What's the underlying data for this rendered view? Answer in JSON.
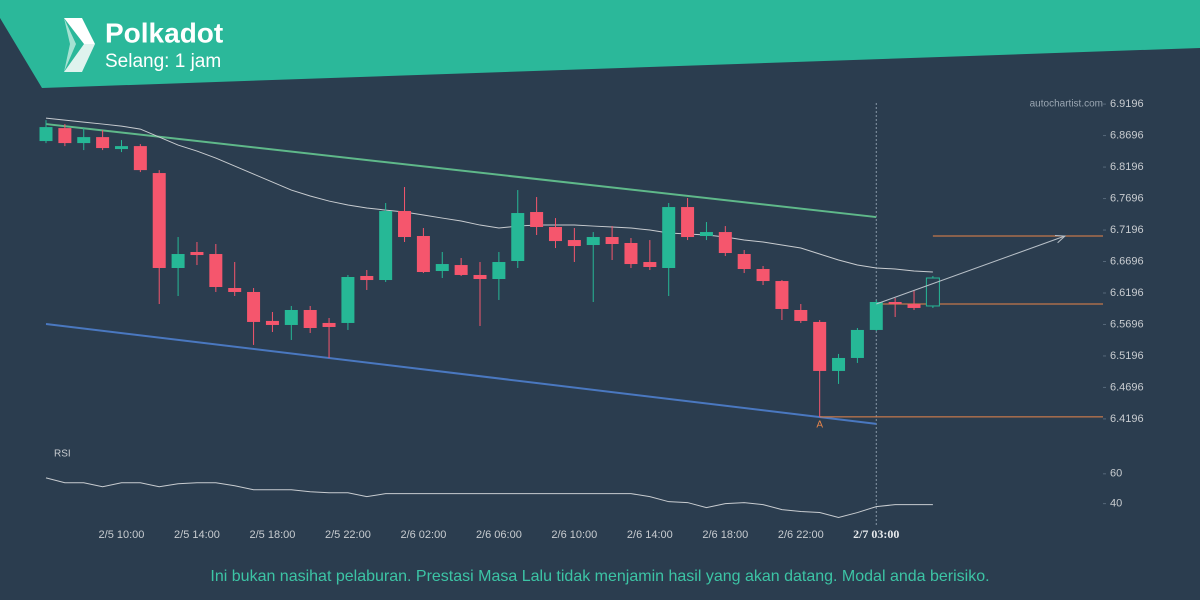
{
  "header": {
    "title": "Polkadot",
    "subtitle": "Selang: 1 jam",
    "watermark": "autochartist.com"
  },
  "chart_data": {
    "type": "candlestick",
    "categories": [
      null,
      null,
      null,
      null,
      "2/5 10:00",
      null,
      null,
      null,
      "2/5 14:00",
      null,
      null,
      null,
      "2/5 18:00",
      null,
      null,
      null,
      "2/5 22:00",
      null,
      null,
      null,
      "2/6 02:00",
      null,
      null,
      null,
      "2/6 06:00",
      null,
      null,
      null,
      "2/6 10:00",
      null,
      null,
      null,
      "2/6 14:00",
      null,
      null,
      null,
      "2/6 18:00",
      null,
      null,
      null,
      "2/6 22:00",
      null,
      null,
      null,
      "2/7 03:00",
      null,
      null,
      null
    ],
    "open": [
      6.8609,
      6.8815,
      6.8577,
      6.8672,
      6.8482,
      6.8529,
      6.8101,
      6.6593,
      6.6847,
      6.6815,
      6.6275,
      6.6212,
      6.5752,
      6.5688,
      6.5926,
      6.572,
      6.572,
      6.6466,
      6.6402,
      6.7498,
      6.7101,
      6.6545,
      6.664,
      6.6482,
      6.6418,
      6.6704,
      6.7482,
      6.7244,
      6.7037,
      6.6958,
      6.7085,
      6.699,
      6.6688,
      6.6593,
      6.7561,
      6.7101,
      6.7164,
      6.6815,
      6.6577,
      6.6386,
      6.5926,
      6.5736,
      6.4958,
      6.5164,
      6.5609,
      6.6053,
      6.6021,
      6.599
    ],
    "high": [
      6.8942,
      6.8879,
      6.8815,
      6.8783,
      6.8625,
      6.8561,
      6.8148,
      6.7085,
      6.7006,
      6.6974,
      6.6688,
      6.6275,
      6.5894,
      6.599,
      6.599,
      6.5799,
      6.6482,
      6.6561,
      6.7625,
      6.7879,
      6.7228,
      6.6847,
      6.6752,
      6.6688,
      6.6847,
      6.7831,
      6.772,
      6.7386,
      6.7228,
      6.7164,
      6.7259,
      6.7069,
      6.7037,
      6.7625,
      6.7704,
      6.7323,
      6.7259,
      6.6879,
      6.6625,
      6.6402,
      6.6021,
      6.5767,
      6.5228,
      6.564,
      6.6085,
      6.6117,
      6.6244,
      6.6466
    ],
    "low": [
      6.8577,
      6.8529,
      6.8466,
      6.8466,
      6.8434,
      6.8117,
      6.6021,
      6.6148,
      6.664,
      6.6212,
      6.6148,
      6.5371,
      6.5577,
      6.545,
      6.5561,
      6.5164,
      6.5609,
      6.6244,
      6.6371,
      6.7006,
      6.6513,
      6.6434,
      6.6466,
      6.5672,
      6.6085,
      6.6593,
      6.7117,
      6.691,
      6.6688,
      6.6053,
      6.672,
      6.6593,
      6.6561,
      6.6148,
      6.7037,
      6.7037,
      6.6783,
      6.6513,
      6.6323,
      6.5767,
      6.572,
      6.4228,
      6.4752,
      6.5085,
      6.5593,
      6.5815,
      6.5926,
      6.5958
    ],
    "close": [
      6.8831,
      6.8577,
      6.8672,
      6.8498,
      6.8529,
      6.8148,
      6.6593,
      6.6815,
      6.6799,
      6.6291,
      6.6212,
      6.5736,
      6.5688,
      6.5926,
      6.564,
      6.5656,
      6.645,
      6.6402,
      6.7498,
      6.7085,
      6.6529,
      6.6656,
      6.6482,
      6.6418,
      6.6688,
      6.7466,
      6.7244,
      6.7021,
      6.6942,
      6.7085,
      6.6974,
      6.6656,
      6.6609,
      6.7561,
      6.7085,
      6.7164,
      6.6831,
      6.6577,
      6.6386,
      6.5942,
      6.5752,
      6.4958,
      6.5164,
      6.5609,
      6.6053,
      6.6021,
      6.5958,
      6.6434
    ],
    "up_color": "#26b896",
    "down_color": "#f5566d",
    "last_candle_hollow": true,
    "moving_average": {
      "color": "#c8ccd0",
      "values": [
        6.8974,
        6.8942,
        6.891,
        6.8879,
        6.8847,
        6.8799,
        6.8672,
        6.8545,
        6.845,
        6.8339,
        6.8212,
        6.8085,
        6.7958,
        6.7831,
        6.7736,
        6.7656,
        6.7593,
        6.7545,
        6.7513,
        6.7482,
        6.7434,
        6.7386,
        6.7339,
        6.7275,
        6.7228,
        6.7259,
        6.7275,
        6.7275,
        6.7275,
        6.7259,
        6.7244,
        6.7228,
        6.7196,
        6.7149,
        6.7133,
        6.7117,
        6.7085,
        6.7037,
        6.7006,
        6.6958,
        6.691,
        6.6815,
        6.672,
        6.664,
        6.6593,
        6.6577,
        6.6545,
        6.6529
      ]
    },
    "resistance": {
      "color": "#5fb98a",
      "from": 0,
      "to": 44,
      "values": [
        6.8879,
        6.7402
      ]
    },
    "support": {
      "color": "#4a78c0",
      "from": 0,
      "to": 44,
      "values": [
        6.5704,
        6.4117
      ]
    },
    "levels": [
      {
        "from": 44,
        "value": 6.6021
      },
      {
        "from": 47,
        "value": 6.7101
      },
      {
        "from": 41,
        "value": 6.4228
      }
    ],
    "level_color": "#e8854a",
    "forecast_arrow": {
      "from": 44,
      "to": 54,
      "values": [
        6.6021,
        6.7101
      ]
    },
    "point_label": {
      "text": "A",
      "index": 41,
      "value": 6.4228
    },
    "current_index": 44,
    "ylim": [
      6.402,
      6.942
    ],
    "yticks": [
      6.9196,
      6.8696,
      6.8196,
      6.7696,
      6.7196,
      6.6696,
      6.6196,
      6.5696,
      6.5196,
      6.4696,
      6.4196
    ],
    "rsi": {
      "label": "RSI",
      "color": "#c8ccd0",
      "values": [
        57.3,
        54,
        54,
        51.3,
        54,
        54,
        51.3,
        53.3,
        54,
        54,
        52,
        49.3,
        49.3,
        49.3,
        48,
        47.3,
        47.3,
        44.7,
        46.7,
        46.7,
        46.7,
        46.7,
        46.7,
        46.7,
        46.7,
        46.7,
        46.7,
        46.7,
        46.7,
        46.7,
        46.7,
        46.7,
        44.7,
        41.3,
        40.7,
        37.3,
        40,
        40.7,
        39.3,
        36,
        34.7,
        34,
        30.7,
        34,
        38,
        39.3,
        39.3,
        39.3
      ],
      "ylim": [
        29,
        76
      ],
      "yticks": [
        60,
        40
      ]
    }
  },
  "footer": {
    "disclaimer": "Ini bukan nasihat pelaburan. Prestasi Masa Lalu tidak menjamin hasil yang akan datang. Modal anda berisiko."
  }
}
